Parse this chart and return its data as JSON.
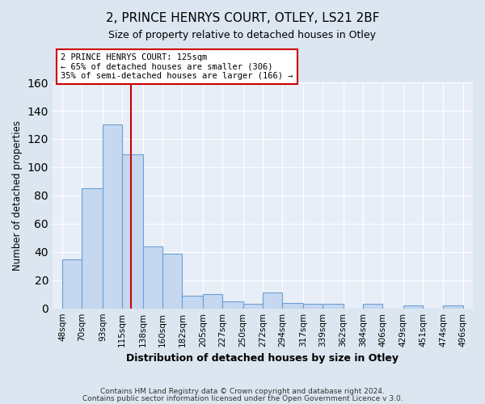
{
  "title": "2, PRINCE HENRYS COURT, OTLEY, LS21 2BF",
  "subtitle": "Size of property relative to detached houses in Otley",
  "xlabel": "Distribution of detached houses by size in Otley",
  "ylabel": "Number of detached properties",
  "footer_line1": "Contains HM Land Registry data © Crown copyright and database right 2024.",
  "footer_line2": "Contains public sector information licensed under the Open Government Licence v 3.0.",
  "bin_edges": [
    48,
    70,
    93,
    115,
    138,
    160,
    182,
    205,
    227,
    250,
    272,
    294,
    317,
    339,
    362,
    384,
    406,
    429,
    451,
    474,
    496
  ],
  "bin_labels": [
    "48sqm",
    "70sqm",
    "93sqm",
    "115sqm",
    "138sqm",
    "160sqm",
    "182sqm",
    "205sqm",
    "227sqm",
    "250sqm",
    "272sqm",
    "294sqm",
    "317sqm",
    "339sqm",
    "362sqm",
    "384sqm",
    "406sqm",
    "429sqm",
    "451sqm",
    "474sqm",
    "496sqm"
  ],
  "counts": [
    35,
    85,
    130,
    109,
    44,
    39,
    9,
    10,
    5,
    3,
    11,
    4,
    3,
    3,
    0,
    3,
    0,
    2,
    0,
    2
  ],
  "bar_color": "#c5d8f0",
  "bar_edge_color": "#6aa0d4",
  "vline_x": 125,
  "vline_color": "#cc0000",
  "annotation_title": "2 PRINCE HENRYS COURT: 125sqm",
  "annotation_line1": "← 65% of detached houses are smaller (306)",
  "annotation_line2": "35% of semi-detached houses are larger (166) →",
  "ylim": [
    0,
    160
  ],
  "yticks": [
    0,
    20,
    40,
    60,
    80,
    100,
    120,
    140,
    160
  ],
  "bg_color": "#dce6f0",
  "plot_bg_color": "#e8eef8",
  "grid_color": "#ffffff"
}
